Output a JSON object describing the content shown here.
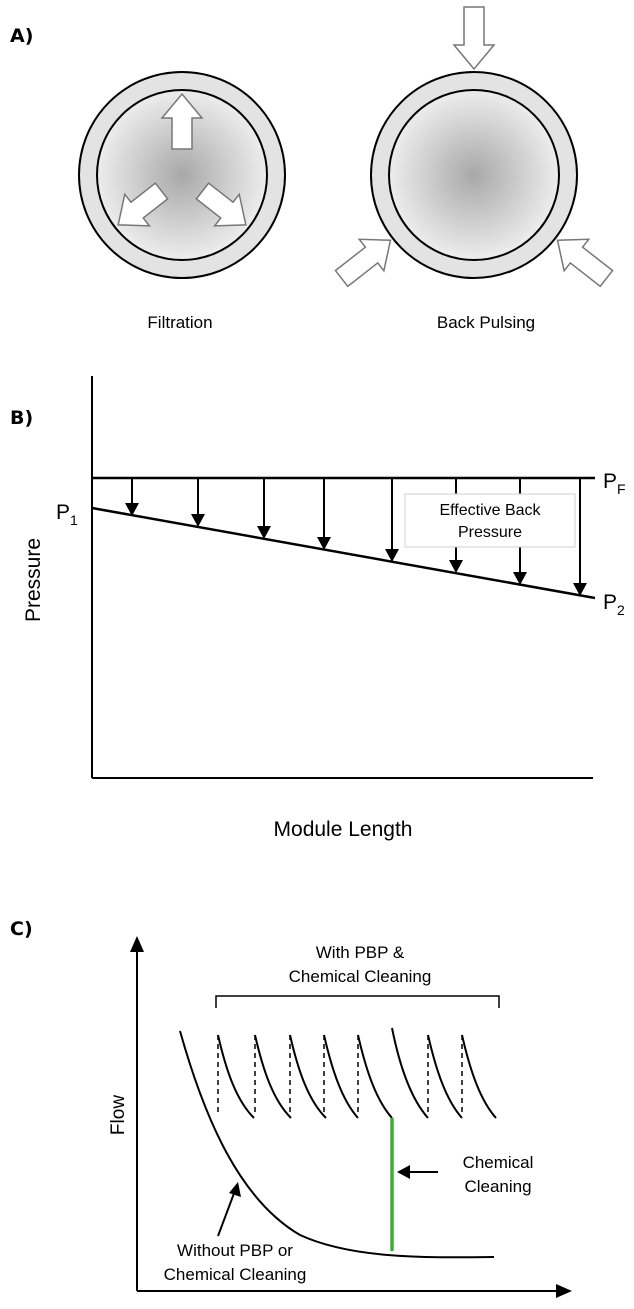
{
  "panel_a": {
    "label": "A)",
    "left_caption": "Filtration",
    "right_caption": "Back Pulsing"
  },
  "panel_b": {
    "label": "B)",
    "y_axis_label": "Pressure",
    "x_axis_label": "Module Length",
    "p1": "P",
    "p1_sub": "1",
    "pf": "P",
    "pf_sub": "F",
    "p2": "P",
    "p2_sub": "2",
    "box_line1": "Effective Back",
    "box_line2": "Pressure"
  },
  "panel_c": {
    "label": "C)",
    "y_axis_label": "Flow",
    "bracket_line1": "With PBP &",
    "bracket_line2": "Chemical Cleaning",
    "cc_line1": "Chemical",
    "cc_line2": "Cleaning",
    "without_line1": "Without PBP or",
    "without_line2": "Chemical Cleaning",
    "cleaning_color": "#3cb034"
  }
}
